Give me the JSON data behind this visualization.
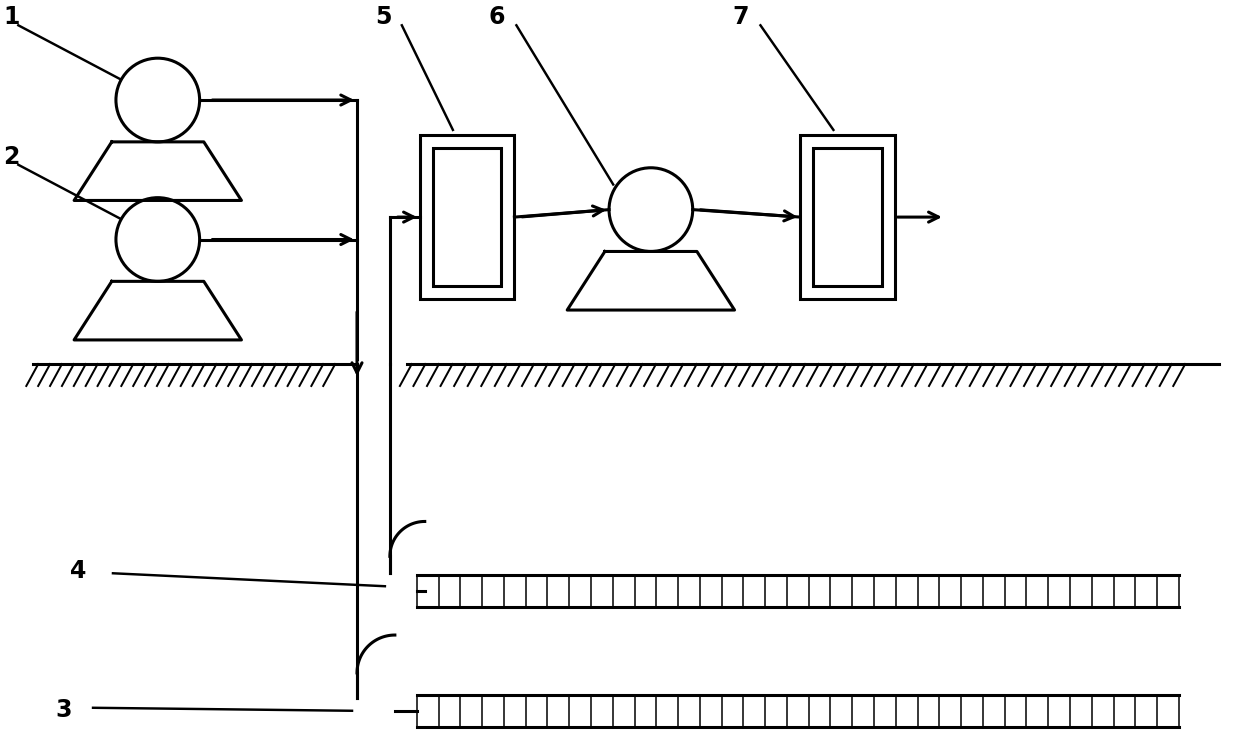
{
  "bg_color": "#ffffff",
  "line_color": "#000000",
  "lw": 2.2,
  "fig_width": 12.39,
  "fig_height": 7.54
}
